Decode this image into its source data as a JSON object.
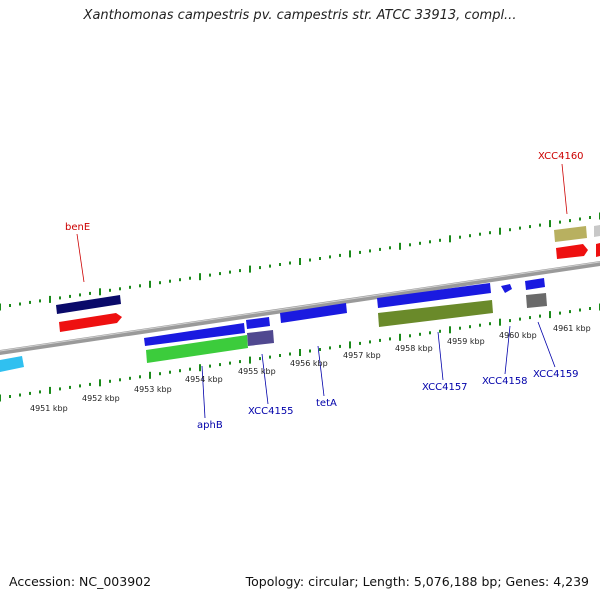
{
  "title": "Xanthomonas campestris pv. campestris str. ATCC 33913, compl...",
  "footer": {
    "accession": "Accession: NC_003902",
    "summary": "Topology: circular; Length: 5,076,188 bp; Genes: 4,239"
  },
  "colors": {
    "backbone": "#8a8a8a",
    "tick": "#1a8a1a",
    "label_red": "#cc0000",
    "label_blue": "#0000aa"
  },
  "chart_data": {
    "type": "diagram",
    "scale_labels": [
      "4951 kbp",
      "4952 kbp",
      "4953 kbp",
      "4954 kbp",
      "4955 kbp",
      "4956 kbp",
      "4957 kbp",
      "4958 kbp",
      "4959 kbp",
      "4960 kbp",
      "4961 kbp"
    ],
    "gene_labels": [
      {
        "name": "benE",
        "color": "#cc0000"
      },
      {
        "name": "XCC4160",
        "color": "#cc0000"
      },
      {
        "name": "aphB",
        "color": "#0000aa"
      },
      {
        "name": "XCC4155",
        "color": "#0000aa"
      },
      {
        "name": "tetA",
        "color": "#0000aa"
      },
      {
        "name": "XCC4157",
        "color": "#0000aa"
      },
      {
        "name": "XCC4158",
        "color": "#0000aa"
      },
      {
        "name": "XCC4159",
        "color": "#0000aa"
      }
    ]
  }
}
